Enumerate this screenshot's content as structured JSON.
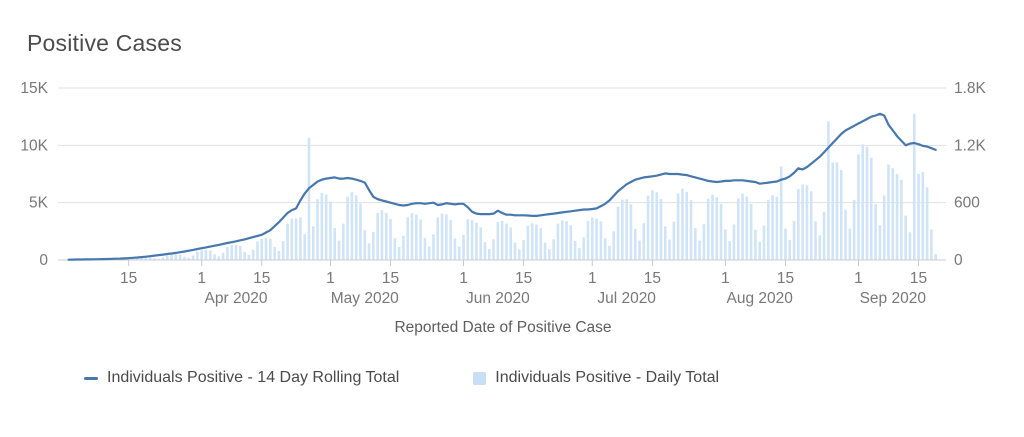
{
  "title": "Positive Cases",
  "colors": {
    "line": "#4678ad",
    "bar": "#d0e4f8",
    "legend_square": "#c8def4",
    "grid": "#e1e1e1",
    "axis_line": "#cccccc",
    "tick_mark": "#c9c9c9",
    "tick_text": "#787878",
    "title_text": "#4c4c4c"
  },
  "axes": {
    "left": {
      "ticks": [
        {
          "label": "15K",
          "value": 15000
        },
        {
          "label": "10K",
          "value": 10000
        },
        {
          "label": "5K",
          "value": 5000
        },
        {
          "label": "0",
          "value": 0
        }
      ]
    },
    "right": {
      "ticks": [
        {
          "label": "1.8K",
          "value": 1800
        },
        {
          "label": "1.2K",
          "value": 1200
        },
        {
          "label": "600",
          "value": 600
        },
        {
          "label": "0",
          "value": 0
        }
      ]
    },
    "x": {
      "title": "Reported Date of Positive Case",
      "ticks": [
        {
          "label": "15",
          "day": 16
        },
        {
          "label": "1",
          "day": 33
        },
        {
          "label": "15",
          "day": 47
        },
        {
          "label": "1",
          "day": 63
        },
        {
          "label": "15",
          "day": 77
        },
        {
          "label": "1",
          "day": 94
        },
        {
          "label": "15",
          "day": 108
        },
        {
          "label": "1",
          "day": 124
        },
        {
          "label": "15",
          "day": 138
        },
        {
          "label": "1",
          "day": 155
        },
        {
          "label": "15",
          "day": 169
        },
        {
          "label": "1",
          "day": 186
        },
        {
          "label": "15",
          "day": 200
        }
      ],
      "month_labels": [
        {
          "label": "Apr 2020",
          "day": 41
        },
        {
          "label": "May 2020",
          "day": 71
        },
        {
          "label": "Jun 2020",
          "day": 102
        },
        {
          "label": "Jul 2020",
          "day": 132
        },
        {
          "label": "Aug 2020",
          "day": 163
        },
        {
          "label": "Sep 2020",
          "day": 194
        }
      ]
    }
  },
  "legend": [
    {
      "label": "Individuals Positive - 14 Day Rolling Total",
      "marker": "line",
      "color": "#4678ad"
    },
    {
      "label": "Individuals Positive - Daily Total",
      "marker": "square",
      "color": "#c8def4"
    }
  ],
  "chart_data": {
    "type": "combo",
    "x_axis": "Reported Date of Positive Case",
    "start_date": "2020-03-01",
    "end_date": "2020-09-19",
    "x_domain_days": 205,
    "start_day_index": 2,
    "ylim_left": [
      0,
      15000
    ],
    "ylim_right": [
      0,
      1800
    ],
    "grid": "horizontal-only",
    "legend_position": "bottom",
    "series": [
      {
        "name": "Individuals Positive - 14 Day Rolling Total",
        "type": "line",
        "axis": "left",
        "color": "#4678ad",
        "values": [
          30,
          35,
          40,
          45,
          50,
          55,
          60,
          70,
          75,
          90,
          100,
          110,
          125,
          140,
          160,
          190,
          220,
          250,
          290,
          330,
          380,
          430,
          470,
          520,
          570,
          620,
          680,
          740,
          810,
          880,
          960,
          1030,
          1100,
          1170,
          1250,
          1320,
          1400,
          1480,
          1550,
          1630,
          1720,
          1800,
          1900,
          2000,
          2100,
          2200,
          2400,
          2600,
          2950,
          3300,
          3700,
          4100,
          4350,
          4500,
          5200,
          5800,
          6250,
          6550,
          6850,
          7000,
          7100,
          7150,
          7200,
          7100,
          7100,
          7150,
          7100,
          7000,
          6900,
          6750,
          6100,
          5500,
          5300,
          5200,
          5100,
          5000,
          4900,
          4800,
          4750,
          4800,
          4900,
          4950,
          4950,
          4900,
          4950,
          5000,
          4800,
          4850,
          4950,
          4900,
          4850,
          4900,
          4900,
          4600,
          4200,
          4050,
          4000,
          4000,
          4000,
          4050,
          4300,
          4100,
          3950,
          3950,
          3900,
          3900,
          3900,
          3880,
          3850,
          3850,
          3900,
          3950,
          4000,
          4050,
          4100,
          4150,
          4200,
          4250,
          4300,
          4350,
          4400,
          4400,
          4450,
          4500,
          4700,
          4900,
          5200,
          5600,
          6000,
          6300,
          6600,
          6800,
          7000,
          7100,
          7200,
          7250,
          7300,
          7350,
          7450,
          7550,
          7500,
          7500,
          7500,
          7450,
          7400,
          7300,
          7200,
          7100,
          7000,
          6900,
          6850,
          6800,
          6850,
          6900,
          6900,
          6950,
          6950,
          6950,
          6900,
          6850,
          6800,
          6650,
          6700,
          6750,
          6800,
          6850,
          7000,
          7100,
          7300,
          7600,
          8000,
          7900,
          8100,
          8400,
          8700,
          9000,
          9400,
          9800,
          10200,
          10600,
          11000,
          11300,
          11500,
          11700,
          11900,
          12100,
          12300,
          12500,
          12600,
          12750,
          12600,
          11800,
          11300,
          10800,
          10400,
          10000,
          10150,
          10200,
          10100,
          9950,
          9900,
          9750,
          9600
        ]
      },
      {
        "name": "Individuals Positive - Daily Total",
        "type": "bar",
        "axis": "right",
        "color": "#d0e4f8",
        "values": [
          1,
          2,
          4,
          4,
          5,
          5,
          3,
          2,
          4,
          8,
          10,
          11,
          11,
          7,
          5,
          10,
          20,
          25,
          28,
          28,
          18,
          12,
          25,
          48,
          57,
          60,
          58,
          34,
          23,
          47,
          89,
          103,
          106,
          100,
          58,
          38,
          75,
          137,
          155,
          157,
          147,
          84,
          54,
          107,
          195,
          220,
          231,
          223,
          137,
          94,
          198,
          381,
          435,
          434,
          446,
          269,
          1280,
          351,
          636,
          700,
          685,
          613,
          334,
          203,
          380,
          664,
          710,
          675,
          591,
          313,
          174,
          295,
          492,
          520,
          492,
          429,
          228,
          137,
          254,
          446,
          490,
          477,
          424,
          228,
          141,
          268,
          446,
          485,
          477,
          420,
          225,
          140,
          263,
          427,
          420,
          391,
          343,
          186,
          114,
          217,
          399,
          410,
          381,
          339,
          181,
          111,
          209,
          360,
          385,
          371,
          334,
          183,
          114,
          217,
          381,
          415,
          405,
          364,
          200,
          124,
          236,
          409,
          445,
          434,
          403,
          228,
          149,
          300,
          557,
          630,
          636,
          583,
          325,
          203,
          386,
          673,
          730,
          709,
          639,
          351,
          214,
          402,
          696,
          745,
          714,
          626,
          334,
          203,
          375,
          641,
          685,
          656,
          587,
          320,
          197,
          372,
          645,
          695,
          665,
          587,
          316,
          190,
          359,
          627,
          680,
          661,
          980,
          330,
          209,
          407,
          743,
          790,
          781,
          720,
          404,
          257,
          504,
          1450,
          1020,
          1022,
          943,
          525,
          329,
          627,
          1105,
          1210,
          1186,
          1071,
          585,
          364,
          675,
          1000,
          960,
          900,
          840,
          464,
          290,
          1530,
          900,
          920,
          760,
          320,
          60
        ]
      }
    ]
  }
}
